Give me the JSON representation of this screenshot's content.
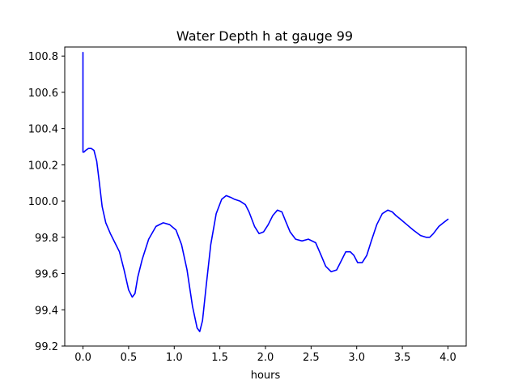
{
  "chart_data": {
    "type": "line",
    "title": "Water Depth h at gauge 99",
    "xlabel": "hours",
    "ylabel": "",
    "xlim": [
      -0.2,
      4.2
    ],
    "ylim": [
      99.2,
      100.85
    ],
    "xticks": [
      0.0,
      0.5,
      1.0,
      1.5,
      2.0,
      2.5,
      3.0,
      3.5,
      4.0
    ],
    "xtick_labels": [
      "0.0",
      "0.5",
      "1.0",
      "1.5",
      "2.0",
      "2.5",
      "3.0",
      "3.5",
      "4.0"
    ],
    "yticks": [
      99.2,
      99.4,
      99.6,
      99.8,
      100.0,
      100.2,
      100.4,
      100.6,
      100.8
    ],
    "ytick_labels": [
      "99.2",
      "99.4",
      "99.6",
      "99.8",
      "100.0",
      "100.2",
      "100.4",
      "100.6",
      "100.8"
    ],
    "grid": false,
    "series": [
      {
        "color": "#0000ff",
        "x": [
          0.0,
          0.0,
          0.0,
          0.01,
          0.03,
          0.06,
          0.09,
          0.12,
          0.15,
          0.18,
          0.21,
          0.25,
          0.3,
          0.35,
          0.4,
          0.45,
          0.5,
          0.54,
          0.57,
          0.6,
          0.65,
          0.72,
          0.8,
          0.88,
          0.95,
          1.02,
          1.08,
          1.14,
          1.2,
          1.25,
          1.28,
          1.31,
          1.35,
          1.4,
          1.46,
          1.52,
          1.57,
          1.62,
          1.66,
          1.72,
          1.78,
          1.82,
          1.88,
          1.93,
          1.98,
          2.03,
          2.08,
          2.13,
          2.18,
          2.22,
          2.27,
          2.33,
          2.4,
          2.47,
          2.55,
          2.61,
          2.66,
          2.72,
          2.78,
          2.83,
          2.88,
          2.93,
          2.97,
          3.01,
          3.06,
          3.11,
          3.16,
          3.22,
          3.28,
          3.34,
          3.39,
          3.43,
          3.48,
          3.55,
          3.62,
          3.7,
          3.76,
          3.8,
          3.84,
          3.9,
          3.95,
          4.0
        ],
        "y": [
          100.82,
          100.27,
          100.27,
          100.27,
          100.28,
          100.29,
          100.29,
          100.28,
          100.22,
          100.1,
          99.97,
          99.88,
          99.82,
          99.77,
          99.72,
          99.62,
          99.51,
          99.47,
          99.49,
          99.58,
          99.68,
          99.79,
          99.86,
          99.88,
          99.87,
          99.84,
          99.76,
          99.62,
          99.42,
          99.3,
          99.28,
          99.34,
          99.53,
          99.76,
          99.93,
          100.01,
          100.03,
          100.02,
          100.01,
          100.0,
          99.98,
          99.94,
          99.86,
          99.82,
          99.83,
          99.87,
          99.92,
          99.95,
          99.94,
          99.89,
          99.83,
          99.79,
          99.78,
          99.79,
          99.77,
          99.7,
          99.64,
          99.61,
          99.62,
          99.67,
          99.72,
          99.72,
          99.7,
          99.66,
          99.66,
          99.7,
          99.78,
          99.87,
          99.93,
          99.95,
          99.94,
          99.92,
          99.9,
          99.87,
          99.84,
          99.81,
          99.8,
          99.8,
          99.82,
          99.86,
          99.88,
          99.9
        ]
      }
    ]
  }
}
